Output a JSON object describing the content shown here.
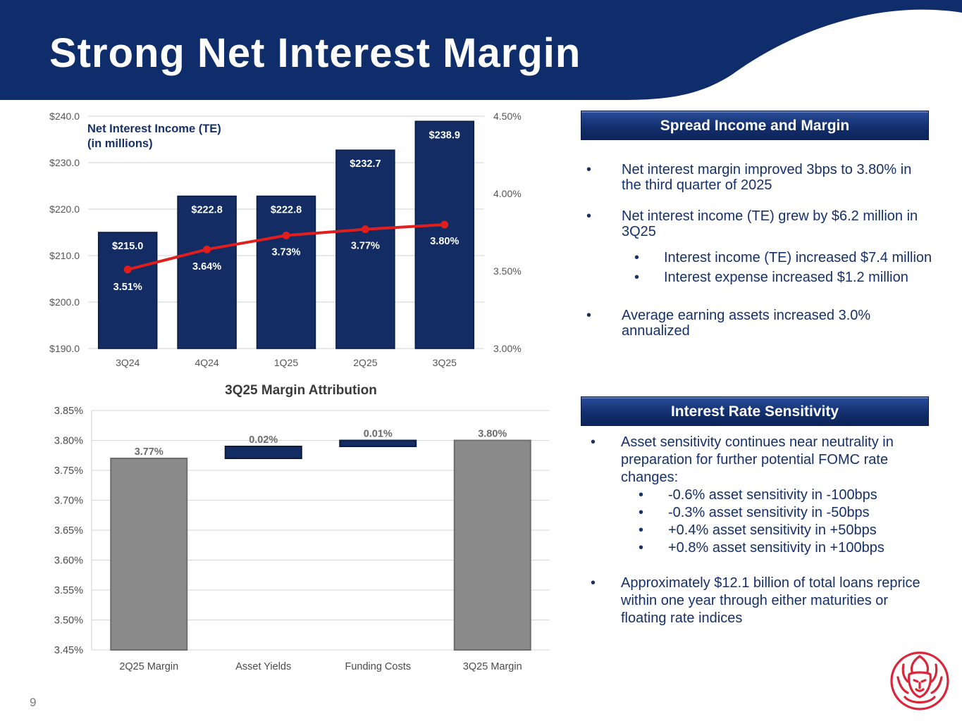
{
  "title": "Strong Net Interest Margin",
  "page_number": "9",
  "colors": {
    "navy": "#132c64",
    "line_red": "#e01e1e",
    "bar_gray": "#8a8a8a",
    "logo_red": "#d9263a"
  },
  "chart_data": [
    {
      "type": "bar",
      "title": "Net Interest Income (TE)",
      "subtitle": "(in millions)",
      "categories": [
        "3Q24",
        "4Q24",
        "1Q25",
        "2Q25",
        "3Q25"
      ],
      "values": [
        215.0,
        222.8,
        222.8,
        232.7,
        238.9
      ],
      "value_labels": [
        "$215.0",
        "$222.8",
        "$222.8",
        "$232.7",
        "$238.9"
      ],
      "ylim": [
        190,
        240
      ],
      "yticks": [
        "$190.0",
        "$200.0",
        "$210.0",
        "$220.0",
        "$230.0",
        "$240.0"
      ],
      "secondary_series": {
        "type": "line",
        "name": "Net Interest Margin",
        "values": [
          3.51,
          3.64,
          3.73,
          3.77,
          3.8
        ],
        "value_labels": [
          "3.51%",
          "3.64%",
          "3.73%",
          "3.77%",
          "3.80%"
        ],
        "ylim": [
          3.0,
          4.5
        ],
        "yticks": [
          "3.00%",
          "3.50%",
          "4.00%",
          "4.50%"
        ]
      },
      "grid": true
    },
    {
      "type": "waterfall",
      "title": "3Q25 Margin Attribution",
      "categories": [
        "2Q25 Margin",
        "Asset Yields",
        "Funding Costs",
        "3Q25 Margin"
      ],
      "values": [
        3.77,
        0.02,
        0.01,
        3.8
      ],
      "bases": [
        3.45,
        3.77,
        3.79,
        3.45
      ],
      "value_labels": [
        "3.77%",
        "0.02%",
        "0.01%",
        "3.80%"
      ],
      "ylim": [
        3.45,
        3.85
      ],
      "yticks": [
        "3.45%",
        "3.50%",
        "3.55%",
        "3.60%",
        "3.65%",
        "3.70%",
        "3.75%",
        "3.80%",
        "3.85%"
      ],
      "grid": true
    }
  ],
  "spread": {
    "header": "Spread Income and Margin",
    "items": [
      {
        "level": 1,
        "text": "Net interest margin improved 3bps to 3.80% in the third quarter of 2025"
      },
      {
        "level": 1,
        "text": "Net interest income (TE) grew by $6.2 million in 3Q25"
      },
      {
        "level": 2,
        "text": "Interest income (TE) increased $7.4 million"
      },
      {
        "level": 2,
        "text": "Interest expense increased $1.2 million"
      },
      {
        "level": 1,
        "text": "Average earning assets increased 3.0% annualized"
      }
    ]
  },
  "irs": {
    "header": "Interest Rate Sensitivity",
    "items": [
      {
        "level": 1,
        "text": "Asset sensitivity continues near neutrality in preparation for further potential FOMC rate changes:"
      },
      {
        "level": 2,
        "text": "-0.6% asset sensitivity in -100bps"
      },
      {
        "level": 2,
        "text": "-0.3% asset sensitivity in -50bps"
      },
      {
        "level": 2,
        "text": "+0.4% asset sensitivity in +50bps"
      },
      {
        "level": 2,
        "text": "+0.8% asset sensitivity in +100bps"
      },
      {
        "level": 1,
        "text": "Approximately $12.1 billion of total loans reprice within one year through either maturities or floating rate indices"
      }
    ]
  }
}
